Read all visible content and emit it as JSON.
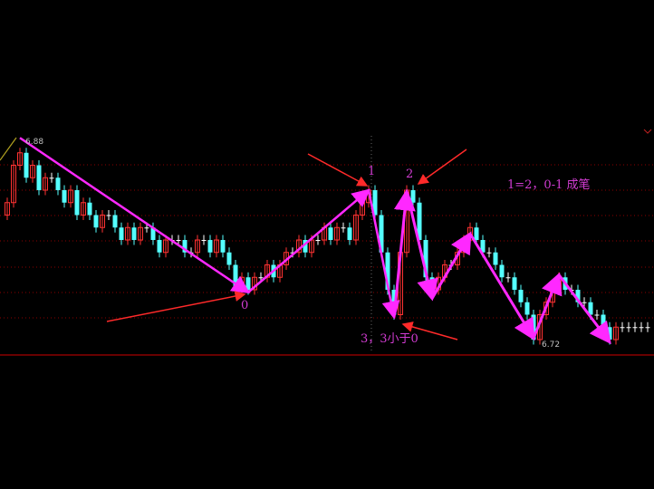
{
  "chart_data": {
    "type": "candlestick",
    "ylim": [
      6.7,
      6.89
    ],
    "grid": true,
    "colors": {
      "up": "#ff3232",
      "down": "#54ffff",
      "flat": "#ffffff",
      "stroke": "#ff28ff",
      "arrow": "#ff2a2a",
      "grid": "#8b0000"
    },
    "closes": [
      6.83,
      6.86,
      6.87,
      6.85,
      6.86,
      6.84,
      6.85,
      6.85,
      6.84,
      6.83,
      6.84,
      6.82,
      6.83,
      6.82,
      6.81,
      6.82,
      6.82,
      6.81,
      6.8,
      6.81,
      6.8,
      6.81,
      6.81,
      6.8,
      6.79,
      6.8,
      6.8,
      6.8,
      6.79,
      6.79,
      6.8,
      6.8,
      6.79,
      6.8,
      6.79,
      6.78,
      6.76,
      6.77,
      6.76,
      6.77,
      6.77,
      6.78,
      6.77,
      6.78,
      6.79,
      6.79,
      6.8,
      6.79,
      6.8,
      6.8,
      6.81,
      6.8,
      6.81,
      6.81,
      6.8,
      6.82,
      6.83,
      6.84,
      6.82,
      6.79,
      6.76,
      6.74,
      6.79,
      6.84,
      6.83,
      6.8,
      6.77,
      6.76,
      6.77,
      6.78,
      6.78,
      6.79,
      6.8,
      6.81,
      6.8,
      6.79,
      6.79,
      6.78,
      6.77,
      6.77,
      6.76,
      6.75,
      6.74,
      6.72,
      6.74,
      6.75,
      6.76,
      6.77,
      6.76,
      6.76,
      6.75,
      6.75,
      6.74,
      6.74,
      6.73,
      6.72,
      6.73,
      6.73,
      6.73,
      6.73,
      6.73,
      6.73
    ],
    "strokes": [
      {
        "index": 2,
        "price": 6.882
      },
      {
        "index": 38,
        "price": 6.758
      },
      {
        "index": 57,
        "price": 6.84
      },
      {
        "index": 61,
        "price": 6.738
      },
      {
        "index": 63,
        "price": 6.839
      },
      {
        "index": 67,
        "price": 6.753
      },
      {
        "index": 73,
        "price": 6.805
      },
      {
        "index": 83,
        "price": 6.721
      },
      {
        "index": 87,
        "price": 6.772
      },
      {
        "index": 95,
        "price": 6.718
      }
    ],
    "high_label": "6.88",
    "low_label": "6.72",
    "annotations": {
      "point0": "0",
      "point1": "1",
      "point2": "2",
      "point3": "3，3小于0",
      "rule": "1=2，0-1 成笔"
    }
  }
}
